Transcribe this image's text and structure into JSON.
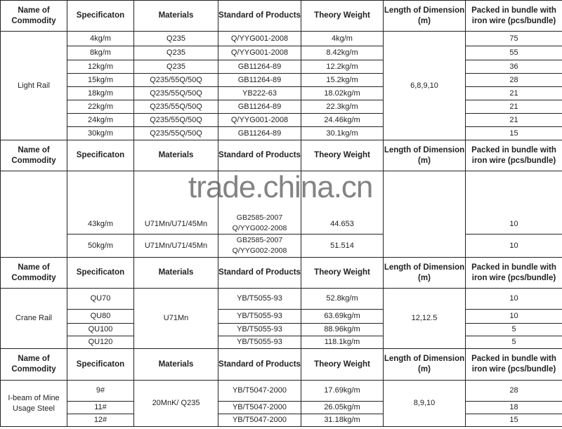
{
  "headers": [
    "Name of Commodity",
    "Specificaton",
    "Materials",
    "Standard of Products",
    "Theory Weight",
    "Length of Dimension    (m)",
    "Packed in bundle with iron wire (pcs/bundle)"
  ],
  "light_rail": {
    "name": "Light Rail",
    "length": "6,8,9,10",
    "rows": [
      [
        "4kg/m",
        "Q235",
        "Q/YYG001-2008",
        "4kg/m",
        "75"
      ],
      [
        "8kg/m",
        "Q235",
        "Q/YYG001-2008",
        "8.42kg/m",
        "55"
      ],
      [
        "12kg/m",
        "Q235",
        "GB11264-89",
        "12.2kg/m",
        "36"
      ],
      [
        "15kg/m",
        "Q235/55Q/50Q",
        "GB11264-89",
        "15.2kg/m",
        "28"
      ],
      [
        "18kg/m",
        "Q235/55Q/50Q",
        "YB222-63",
        "18.02kg/m",
        "21"
      ],
      [
        "22kg/m",
        "Q235/55Q/50Q",
        "GB11264-89",
        "22.3kg/m",
        "21"
      ],
      [
        "24kg/m",
        "Q235/55Q/50Q",
        "Q/YYG001-2008",
        "24.46kg/m",
        "21"
      ],
      [
        "30kg/m",
        "Q235/55Q/50Q",
        "GB11264-89",
        "30.1kg/m",
        "15"
      ]
    ]
  },
  "heavy_rail": {
    "rows": [
      [
        "43kg/m",
        "U71Mn/U71/45Mn",
        "GB2585-2007",
        "Q/YYG002-2008",
        "44.653",
        "10"
      ],
      [
        "50kg/m",
        "U71Mn/U71/45Mn",
        "GB2585-2007",
        "Q/YYG002-2008",
        "51.514",
        "10"
      ]
    ]
  },
  "crane_rail": {
    "name": "Crane Rail",
    "material": "U71Mn",
    "length": "12,12.5",
    "rows": [
      [
        "QU70",
        "YB/T5055-93",
        "52.8kg/m",
        "10"
      ],
      [
        "QU80",
        "YB/T5055-93",
        "63.69kg/m",
        "10"
      ],
      [
        "QU100",
        "YB/T5055-93",
        "88.96kg/m",
        "5"
      ],
      [
        "QU120",
        "YB/T5055-93",
        "118.1kg/m",
        "5"
      ]
    ]
  },
  "ibeam": {
    "name": "I-beam of Mine Usage Steel",
    "material": "20MnK/ Q235",
    "length": "8,9,10",
    "rows": [
      [
        "9#",
        "YB/T5047-2000",
        "17.69kg/m",
        "28"
      ],
      [
        "11#",
        "YB/T5047-2000",
        "26.05kg/m",
        "18"
      ],
      [
        "12#",
        "YB/T5047-2000",
        "31.18kg/m",
        "15"
      ]
    ]
  },
  "watermark": "trade.china.cn"
}
